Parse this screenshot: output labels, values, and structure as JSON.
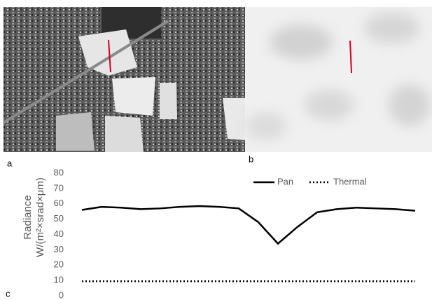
{
  "panel_labels": [
    "a",
    "b",
    "c"
  ],
  "chart_data": {
    "type": "line",
    "ylabel": [
      "Radiance",
      "W/(m²×srad×μm)"
    ],
    "categories": [
      null,
      null,
      null,
      null,
      null,
      null,
      null,
      null,
      null,
      null,
      null,
      null,
      null,
      null,
      null,
      null,
      null,
      null
    ],
    "series": [
      {
        "name": "Pan",
        "color": "#000000",
        "style": "solid",
        "values": [
          56,
          58,
          57.5,
          56.5,
          57,
          58,
          58.5,
          58,
          57,
          48,
          34,
          45,
          54.5,
          56.5,
          57.5,
          57,
          56.5,
          55.5
        ]
      },
      {
        "name": "Thermal",
        "color": "#000000",
        "style": "dotted",
        "values": [
          9.5,
          9.5,
          9.5,
          9.5,
          9.5,
          9.5,
          9.5,
          9.5,
          9.5,
          9.5,
          9.5,
          9.5,
          9.5,
          9.5,
          9.5,
          9.5,
          9.5,
          9.5
        ]
      }
    ],
    "ylim": [
      0,
      80
    ],
    "yticks": [
      0,
      10,
      20,
      30,
      40,
      50,
      60,
      70,
      80
    ],
    "grid": false,
    "legend": "top-right"
  }
}
